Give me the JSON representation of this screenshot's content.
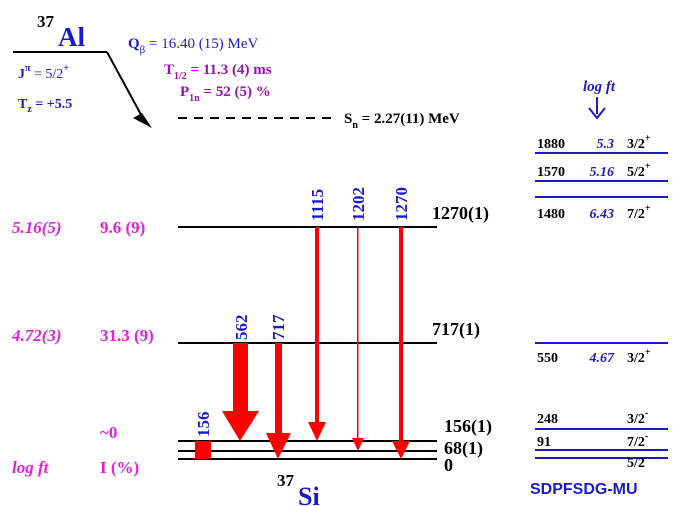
{
  "parent": {
    "mass": "37",
    "symbol": "Al",
    "spin": {
      "label": "J",
      "sup": "π",
      "value": " = 5/2",
      "parity": "+"
    },
    "tz": {
      "label": "T",
      "sub": "z",
      "value": " = +5.5"
    }
  },
  "decay": {
    "q": {
      "label": "Q",
      "sub": "β",
      "value": " = 16.40 (15) MeV"
    },
    "half_life": {
      "label": "T",
      "sub": "1/2",
      "value": " = 11.3 (4) ms"
    },
    "p1n": {
      "label": "P",
      "sub": "1n",
      "value": " = 52 (5) %"
    },
    "sn": {
      "label": "S",
      "sub": "n",
      "value": " = 2.27(11) MeV"
    }
  },
  "levels": [
    {
      "energy": "1270(1)",
      "log_ft": "5.16(5)",
      "intensity": "9.6 (9)"
    },
    {
      "energy": "717(1)",
      "log_ft": "4.72(3)",
      "intensity": "31.3 (9)"
    },
    {
      "energy": "156(1)",
      "intensity": "~0"
    },
    {
      "energy": "68(1)"
    },
    {
      "energy": "0"
    }
  ],
  "column_headers": {
    "log_ft": "log ft",
    "intensity": "I (%)"
  },
  "gammas": [
    "156",
    "562",
    "717",
    "1115",
    "1202",
    "1270"
  ],
  "daughter": {
    "mass": "37",
    "symbol": "Si"
  },
  "theory": {
    "header": "log ft",
    "levels": [
      {
        "energy": "1880",
        "log_ft": "5.3",
        "spin": "3/2",
        "parity": "+"
      },
      {
        "energy": "1570",
        "log_ft": "5.16",
        "spin": "5/2",
        "parity": "+"
      },
      {
        "energy": "1480",
        "log_ft": "6.43",
        "spin": "7/2",
        "parity": "+"
      },
      {
        "energy": "550",
        "log_ft": "4.67",
        "spin": "3/2",
        "parity": "+"
      },
      {
        "energy": "248",
        "spin": "3/2",
        "parity": "-"
      },
      {
        "energy": "91",
        "spin": "7/2",
        "parity": "-"
      },
      {
        "spin": "5/2",
        "parity": "-"
      }
    ],
    "model": "SDPFSDG-MU"
  }
}
